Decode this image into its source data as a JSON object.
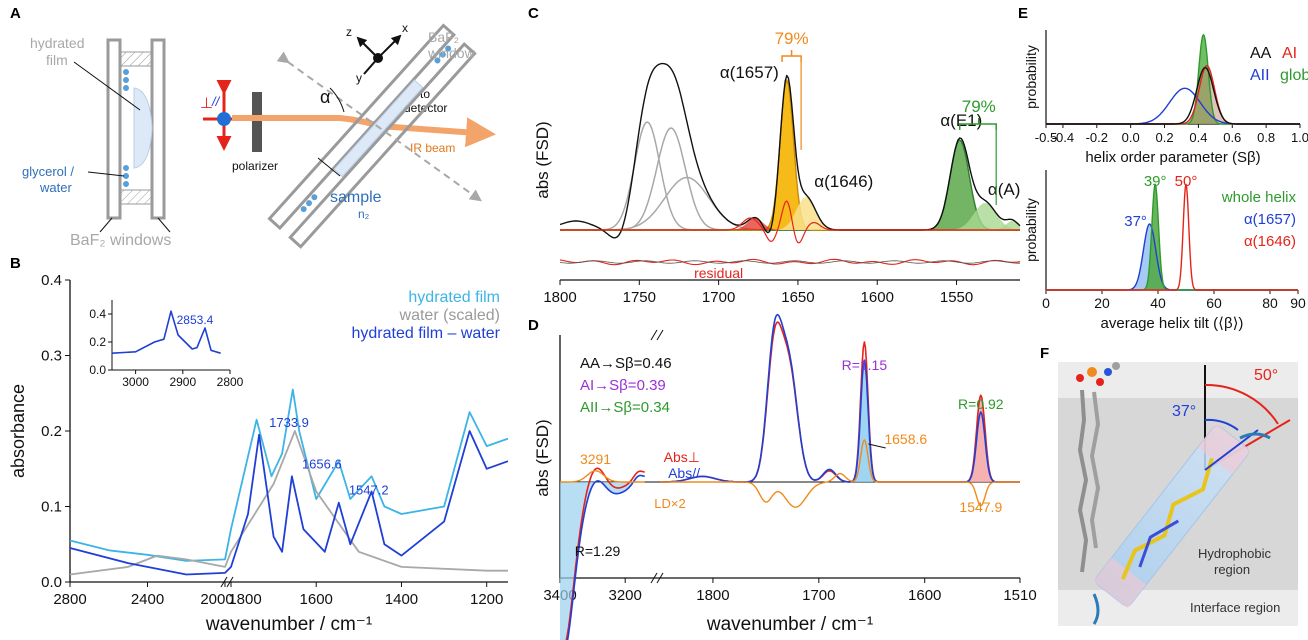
{
  "colors": {
    "black": "#111111",
    "grey": "#a8a8a8",
    "lightblue": "#3cb4e6",
    "blue": "#1f3fd6",
    "red": "#e5231b",
    "orange": "#f08a1c",
    "green": "#2e9a2e",
    "purple": "#9b30d6",
    "beam": "#f2a46a",
    "peach": "#f3b48a",
    "filmblue": "#dde9f7"
  },
  "panels": {
    "A": {
      "letter": "A",
      "hydrated": "hydrated",
      "film": "film",
      "glycerol": "glycerol /",
      "water": "water",
      "windows": "BaF₂ windows",
      "perp": "⊥",
      "par": "//",
      "polarizer": "polarizer",
      "alpha": "α",
      "to": "to",
      "detector": "detector",
      "ir_beam": "IR beam",
      "baf2": "BaF₂",
      "window": "window",
      "sample": "sample",
      "n2": "n₂",
      "axes": [
        "z",
        "y",
        "x"
      ]
    },
    "B": {
      "letter": "B"
    },
    "C": {
      "letter": "C"
    },
    "D": {
      "letter": "D"
    },
    "E": {
      "letter": "E"
    },
    "F": {
      "letter": "F",
      "angle1": "37°",
      "angle2": "50°",
      "hydrophobic1": "Hydrophobic",
      "hydrophobic2": "region",
      "interface": "Interface region"
    }
  },
  "chart_data": [
    {
      "id": "B",
      "type": "line",
      "xlabel": "wavenumber / cm⁻¹",
      "ylabel": "absorbance",
      "ylim": [
        0,
        0.4
      ],
      "y_ticks": [
        "0.0",
        "0.1",
        "0.2",
        "0.3",
        "0.4"
      ],
      "x_ticks": [
        "2800",
        "2400",
        "2000",
        "1800",
        "1600",
        "1400",
        "1200"
      ],
      "axis_break": [
        2000,
        1800
      ],
      "legend": [
        "hydrated film",
        "water (scaled)",
        "hydrated film – water"
      ],
      "series": [
        {
          "name": "hydrated film",
          "color": "#3cb4e6",
          "points": [
            [
              2800,
              0.055
            ],
            [
              2600,
              0.042
            ],
            [
              2400,
              0.036
            ],
            [
              2200,
              0.028
            ],
            [
              2000,
              0.03
            ],
            [
              1800,
              0.07
            ],
            [
              1740,
              0.215
            ],
            [
              1705,
              0.14
            ],
            [
              1680,
              0.17
            ],
            [
              1655,
              0.255
            ],
            [
              1640,
              0.2
            ],
            [
              1600,
              0.11
            ],
            [
              1547,
              0.16
            ],
            [
              1520,
              0.11
            ],
            [
              1470,
              0.14
            ],
            [
              1440,
              0.1
            ],
            [
              1400,
              0.09
            ],
            [
              1300,
              0.1
            ],
            [
              1240,
              0.225
            ],
            [
              1200,
              0.18
            ],
            [
              1150,
              0.19
            ]
          ]
        },
        {
          "name": "water (scaled)",
          "color": "#a8a8a8",
          "points": [
            [
              2800,
              0.01
            ],
            [
              2500,
              0.02
            ],
            [
              2350,
              0.035
            ],
            [
              2200,
              0.03
            ],
            [
              2000,
              0.02
            ],
            [
              1800,
              0.04
            ],
            [
              1700,
              0.13
            ],
            [
              1650,
              0.2
            ],
            [
              1600,
              0.12
            ],
            [
              1500,
              0.04
            ],
            [
              1400,
              0.02
            ],
            [
              1200,
              0.015
            ],
            [
              1150,
              0.015
            ]
          ]
        },
        {
          "name": "hydrated film – water",
          "color": "#1f3fd6",
          "points": [
            [
              2800,
              0.045
            ],
            [
              2500,
              0.025
            ],
            [
              2200,
              0.01
            ],
            [
              2000,
              0.012
            ],
            [
              1800,
              0.02
            ],
            [
              1760,
              0.09
            ],
            [
              1734,
              0.195
            ],
            [
              1700,
              0.06
            ],
            [
              1680,
              0.04
            ],
            [
              1657,
              0.14
            ],
            [
              1630,
              0.07
            ],
            [
              1580,
              0.04
            ],
            [
              1547,
              0.105
            ],
            [
              1520,
              0.05
            ],
            [
              1470,
              0.12
            ],
            [
              1440,
              0.05
            ],
            [
              1400,
              0.035
            ],
            [
              1300,
              0.08
            ],
            [
              1240,
              0.2
            ],
            [
              1200,
              0.15
            ],
            [
              1150,
              0.16
            ]
          ]
        }
      ],
      "labels": [
        {
          "text": "1733.9",
          "x": 1734,
          "y": 0.195
        },
        {
          "text": "1656.6",
          "x": 1657,
          "y": 0.14
        },
        {
          "text": "1547.2",
          "x": 1547,
          "y": 0.105
        }
      ],
      "inset": {
        "xlim": [
          3050,
          2800
        ],
        "ylim": [
          0,
          0.5
        ],
        "x_ticks": [
          "3000",
          "2900",
          "2800"
        ],
        "y_ticks": [
          "0.0",
          "0.2",
          "0.4"
        ],
        "label": "2853.4",
        "points": [
          [
            3050,
            0.12
          ],
          [
            3000,
            0.13
          ],
          [
            2960,
            0.2
          ],
          [
            2940,
            0.22
          ],
          [
            2925,
            0.42
          ],
          [
            2910,
            0.25
          ],
          [
            2880,
            0.15
          ],
          [
            2870,
            0.16
          ],
          [
            2853,
            0.3
          ],
          [
            2840,
            0.14
          ],
          [
            2820,
            0.12
          ]
        ]
      }
    },
    {
      "id": "C",
      "type": "line",
      "ylabel": "abs (FSD)",
      "x_ticks": [
        "1800",
        "1750",
        "1700",
        "1650",
        "1600",
        "1550"
      ],
      "xlim": [
        1800,
        1510
      ],
      "series": [
        {
          "name": "",
          "color": "#111111",
          "points": [
            [
              1800,
              0.0
            ],
            [
              1780,
              -0.05
            ],
            [
              1760,
              -0.1
            ],
            [
              1745,
              0.8
            ],
            [
              1735,
              0.8
            ],
            [
              1725,
              0.5
            ],
            [
              1710,
              0.05
            ],
            [
              1690,
              0.05
            ],
            [
              1680,
              0.1
            ],
            [
              1670,
              0.0
            ],
            [
              1665,
              0.0
            ],
            [
              1657,
              1.0
            ],
            [
              1650,
              0.2
            ],
            [
              1646,
              0.28
            ],
            [
              1640,
              0.15
            ],
            [
              1620,
              0.05
            ],
            [
              1600,
              0.0
            ],
            [
              1560,
              0.0
            ],
            [
              1548,
              0.6
            ],
            [
              1540,
              0.3
            ],
            [
              1530,
              0.2
            ],
            [
              1518,
              0.05
            ],
            [
              1510,
              0.0
            ]
          ]
        },
        {
          "name": "",
          "color": "#e5231b",
          "points": [
            [
              1800,
              0.0
            ],
            [
              1700,
              0.0
            ],
            [
              1685,
              0.05
            ],
            [
              1675,
              0.08
            ],
            [
              1668,
              0.0
            ],
            [
              1663,
              -0.1
            ],
            [
              1657,
              0.25
            ],
            [
              1648,
              -0.08
            ],
            [
              1640,
              0.05
            ],
            [
              1620,
              0.0
            ],
            [
              1510,
              0.0
            ]
          ]
        }
      ],
      "peaks": [
        {
          "text": "α(1657)",
          "x": 1657
        },
        {
          "text": "α(1646)",
          "x": 1646
        },
        {
          "text": "α(E1)",
          "x": 1547
        },
        {
          "text": "α(A)",
          "x": 1515
        }
      ],
      "pct": [
        {
          "text": "79%",
          "color": "#f08a1c"
        },
        {
          "text": "79%",
          "color": "#2e9a2e"
        }
      ],
      "residual_label": "residual"
    },
    {
      "id": "D",
      "type": "line",
      "ylabel": "abs (FSD)",
      "xlabel": "wavenumber / cm⁻¹",
      "x_ticks": [
        "3400",
        "3200",
        "1800",
        "1700",
        "1600",
        "1510"
      ],
      "annotations": [
        "AA→Sβ=0.46",
        "AI→Sβ=0.39",
        "AII→Sβ=0.34"
      ],
      "annotation_colors": [
        "#111111",
        "#9b30d6",
        "#2e9a2e"
      ],
      "legend": [
        "Abs⊥",
        "Abs//",
        "LD×2"
      ],
      "labels": {
        "r129": "R=1.29",
        "r115": "R=1.15",
        "r092": "R=0.92",
        "p3291": "3291",
        "p16586": "1658.6",
        "p15479": "1547.9"
      },
      "series": [
        {
          "name": "Abs⊥",
          "color": "#e5231b",
          "points": [
            [
              1800,
              0.0
            ],
            [
              1760,
              0.0
            ],
            [
              1745,
              0.8
            ],
            [
              1730,
              0.7
            ],
            [
              1710,
              0.0
            ],
            [
              1660,
              0.85
            ],
            [
              1650,
              0.0
            ],
            [
              1600,
              0.0
            ],
            [
              1548,
              0.55
            ],
            [
              1535,
              0.0
            ],
            [
              1510,
              0.0
            ]
          ]
        },
        {
          "name": "Abs//",
          "color": "#1f3fd6",
          "points": [
            [
              1800,
              0.0
            ],
            [
              1760,
              0.0
            ],
            [
              1745,
              0.8
            ],
            [
              1730,
              0.7
            ],
            [
              1710,
              0.0
            ],
            [
              1660,
              0.75
            ],
            [
              1650,
              0.0
            ],
            [
              1600,
              0.0
            ],
            [
              1548,
              0.45
            ],
            [
              1535,
              0.0
            ],
            [
              1510,
              0.0
            ]
          ]
        },
        {
          "name": "LD×2",
          "color": "#f08a1c",
          "points": [
            [
              1800,
              0.0
            ],
            [
              1760,
              0.0
            ],
            [
              1745,
              -0.2
            ],
            [
              1730,
              -0.1
            ],
            [
              1710,
              0.0
            ],
            [
              1660,
              0.25
            ],
            [
              1650,
              0.0
            ],
            [
              1600,
              0.0
            ],
            [
              1548,
              -0.15
            ],
            [
              1535,
              0.0
            ],
            [
              1510,
              0.0
            ]
          ]
        }
      ]
    },
    {
      "id": "E1",
      "type": "area",
      "ylabel": "probability",
      "xlabel": "helix order parameter (Sβ)",
      "x_ticks": [
        "-0.5",
        "-0.4",
        "-0.2",
        "0.0",
        "0.2",
        "0.4",
        "0.6",
        "0.8",
        "1.0"
      ],
      "xlim": [
        -0.5,
        1.0
      ],
      "legend": [
        "AA",
        "AI",
        "AII",
        "global"
      ],
      "legend_colors": [
        "#111111",
        "#e5231b",
        "#1f3fd6",
        "#2e9a2e"
      ]
    },
    {
      "id": "E2",
      "type": "area",
      "ylabel": "probability",
      "xlabel": "average helix tilt (⟨β⟩)",
      "x_ticks": [
        "0",
        "20",
        "40",
        "60",
        "80",
        "90"
      ],
      "xlim": [
        0,
        90
      ],
      "angles": [
        {
          "text": "39°",
          "color": "#2e9a2e"
        },
        {
          "text": "50°",
          "color": "#e5231b"
        },
        {
          "text": "37°",
          "color": "#1f3fd6"
        }
      ],
      "legend": [
        "whole helix",
        "α(1657)",
        "α(1646)"
      ],
      "legend_colors": [
        "#2e9a2e",
        "#1f3fd6",
        "#e5231b"
      ]
    }
  ]
}
